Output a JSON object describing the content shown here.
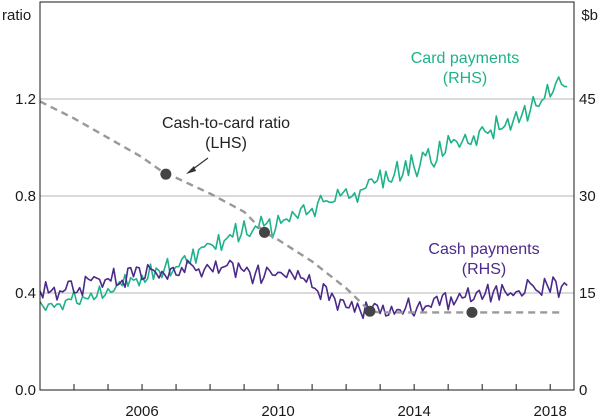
{
  "chart_data": {
    "type": "line",
    "left_axis": {
      "label": "ratio",
      "range": [
        0,
        1.6
      ],
      "ticks": [
        "0.0",
        "0.4",
        "0.8",
        "1.2"
      ],
      "tick_values": [
        0,
        0.4,
        0.8,
        1.2
      ]
    },
    "right_axis": {
      "label": "$b",
      "range": [
        0,
        60
      ],
      "ticks": [
        "0",
        "15",
        "30",
        "45"
      ],
      "tick_values": [
        0,
        15,
        30,
        45
      ]
    },
    "x_axis": {
      "range": [
        2003.0,
        2018.7
      ],
      "ticks": [
        "2006",
        "2010",
        "2014",
        "2018"
      ],
      "tick_values": [
        2006,
        2010,
        2014,
        2018
      ],
      "minor_ticks": [
        2004,
        2005,
        2006,
        2007,
        2008,
        2009,
        2010,
        2011,
        2012,
        2013,
        2014,
        2015,
        2016,
        2017,
        2018
      ]
    },
    "grid": true,
    "annotations": [
      {
        "id": "card",
        "lines": [
          "Card payments",
          "(RHS)"
        ],
        "color": "#1fb28a"
      },
      {
        "id": "ratio",
        "lines": [
          "Cash-to-card ratio",
          "(LHS)"
        ],
        "color": "#222222"
      },
      {
        "id": "cash",
        "lines": [
          "Cash payments",
          "(RHS)"
        ],
        "color": "#4b2a8a"
      }
    ],
    "series": [
      {
        "key": "card",
        "axis": "right",
        "color": "#1fb28a",
        "x": [
          2003.0,
          2003.5,
          2004.0,
          2004.5,
          2005.0,
          2005.5,
          2006.0,
          2006.5,
          2007.0,
          2007.5,
          2008.0,
          2008.5,
          2009.0,
          2009.5,
          2010.0,
          2010.5,
          2011.0,
          2011.5,
          2012.0,
          2012.5,
          2013.0,
          2013.5,
          2014.0,
          2014.5,
          2015.0,
          2015.5,
          2016.0,
          2016.5,
          2017.0,
          2017.5,
          2018.0,
          2018.5
        ],
        "values": [
          12.5,
          13.2,
          14.0,
          14.8,
          15.8,
          16.5,
          17.5,
          18.5,
          19.5,
          20.8,
          22.5,
          23.5,
          24.5,
          25.0,
          25.5,
          26.5,
          28.0,
          29.0,
          30.0,
          31.2,
          32.5,
          33.5,
          35.0,
          36.0,
          37.5,
          38.5,
          40.0,
          41.0,
          43.0,
          44.0,
          46.0,
          47.0
        ]
      },
      {
        "key": "cash",
        "axis": "right",
        "color": "#4b2a8a",
        "x": [
          2003.0,
          2003.5,
          2004.0,
          2004.5,
          2005.0,
          2005.5,
          2006.0,
          2006.5,
          2007.0,
          2007.5,
          2008.0,
          2008.5,
          2009.0,
          2009.5,
          2010.0,
          2010.5,
          2011.0,
          2011.5,
          2012.0,
          2012.5,
          2013.0,
          2013.5,
          2014.0,
          2014.5,
          2015.0,
          2015.5,
          2016.0,
          2016.5,
          2017.0,
          2017.5,
          2018.0,
          2018.5
        ],
        "values": [
          15.0,
          15.5,
          16.0,
          16.5,
          17.0,
          17.5,
          18.0,
          18.5,
          18.5,
          19.0,
          19.0,
          18.8,
          18.5,
          18.0,
          18.0,
          17.5,
          16.5,
          15.0,
          13.5,
          12.8,
          12.0,
          12.2,
          12.8,
          13.5,
          14.0,
          14.5,
          15.0,
          15.3,
          15.5,
          15.8,
          16.0,
          16.0
        ]
      },
      {
        "key": "ratio",
        "axis": "left",
        "color": "#999999",
        "dashed": true,
        "x": [
          2003.0,
          2004.0,
          2005.0,
          2006.0,
          2006.7,
          2007.0,
          2008.0,
          2009.0,
          2009.6,
          2010.0,
          2011.0,
          2012.0,
          2012.7,
          2013.0,
          2014.0,
          2015.0,
          2015.7,
          2016.0,
          2017.0,
          2018.0,
          2018.4
        ],
        "values": [
          1.19,
          1.12,
          1.04,
          0.96,
          0.89,
          0.875,
          0.81,
          0.735,
          0.65,
          0.62,
          0.53,
          0.42,
          0.325,
          0.32,
          0.32,
          0.32,
          0.32,
          0.32,
          0.32,
          0.32,
          0.32
        ],
        "markers": [
          [
            2006.7,
            0.89
          ],
          [
            2009.6,
            0.65
          ],
          [
            2012.7,
            0.325
          ],
          [
            2015.7,
            0.32
          ]
        ]
      }
    ]
  }
}
